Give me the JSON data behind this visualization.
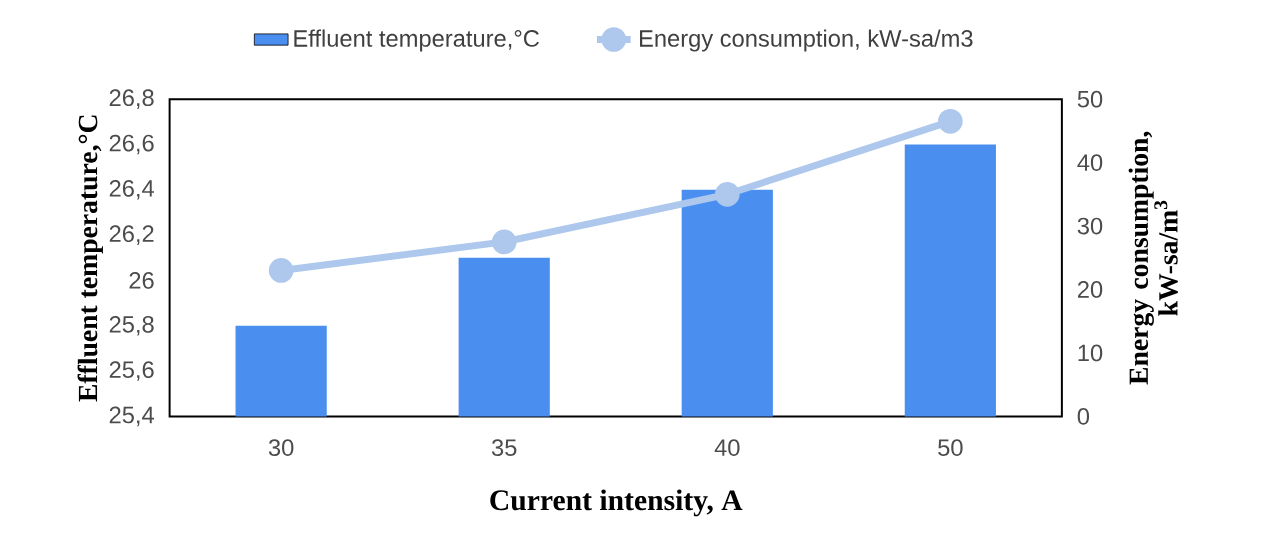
{
  "chart_data": {
    "type": "bar",
    "xlabel": "Current intensity, A",
    "ylabel": "Effluent temperature,°C",
    "y2label": "Energy consumption, kW-sa/m$^{3}$",
    "categories": [
      "30",
      "35",
      "40",
      "50"
    ],
    "series": [
      {
        "name": "Effluent temperature,°C",
        "color": "#4a8ff0",
        "values": [
          25.8,
          26.1,
          26.4,
          26.6
        ]
      },
      {
        "name": "Energy consumption, kW-sa/m3",
        "type": "line",
        "axis": "y2",
        "marker": "circle",
        "color": "#adc8ec",
        "values": [
          23,
          27.5,
          35,
          46.5
        ]
      }
    ],
    "ylim": [
      25.4,
      26.8
    ],
    "yticks": [
      {
        "value": 25.4,
        "label": "25,4"
      },
      {
        "value": 25.6,
        "label": "25,6"
      },
      {
        "value": 25.8,
        "label": "25,8"
      },
      {
        "value": 26,
        "label": "26"
      },
      {
        "value": 26.2,
        "label": "26,2"
      },
      {
        "value": 26.4,
        "label": "26,4"
      },
      {
        "value": 26.6,
        "label": "26,6"
      },
      {
        "value": 26.8,
        "label": "26,8"
      }
    ],
    "y2lim": [
      0,
      50
    ],
    "y2ticks": [
      0,
      10,
      20,
      30,
      40,
      50
    ],
    "legend": "top"
  }
}
